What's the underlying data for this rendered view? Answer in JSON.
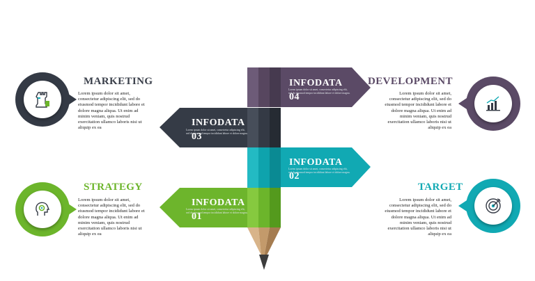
{
  "colors": {
    "purple": "#5b4a66",
    "slate": "#343a45",
    "teal": "#0fa8b2",
    "green": "#6cb52b"
  },
  "arrows": [
    {
      "label": "INFODATA 01",
      "body": "Lorem ipsum dolor sit amet, consectetur adipiscing elit, sed do eiusmod tempor incididunt labore et dolore magna."
    },
    {
      "label": "INFODATA 02",
      "body": "Lorem ipsum dolor sit amet, consectetur adipiscing elit, sed do eiusmod tempor incididunt labore et dolore magna."
    },
    {
      "label": "INFODATA 03",
      "body": "Lorem ipsum dolor sit amet, consectetur adipiscing elit, sed do eiusmod tempor incididunt labore et dolore magna."
    },
    {
      "label": "INFODATA 04",
      "body": "Lorem ipsum dolor sit amet, consectetur adipiscing elit, sed do eiusmod tempor incididunt labore et dolore magna."
    }
  ],
  "panels": {
    "marketing": {
      "title": "MARKETING",
      "icon": "chess-rook-icon",
      "body": "Lorem ipsum dolor sit amet, consectetur adipiscing elit, sed do eiusmod tempor incididunt labore et dolore magna aliqua. Ut enim ad minim veniam, quis nostrud exercitation ullamco laboris nisi ut aliquip ex ea"
    },
    "strategy": {
      "title": "STRATEGY",
      "icon": "head-gear-icon",
      "body": "Lorem ipsum dolor sit amet, consectetur adipiscing elit, sed do eiusmod tempor incididunt labore et dolore magna aliqua. Ut enim ad minim veniam, quis nostrud exercitation ullamco laboris nisi ut aliquip ex ea"
    },
    "development": {
      "title": "DEVELOPMENT",
      "icon": "bar-chart-icon",
      "body": "Lorem ipsum dolor sit amet, consectetur adipiscing elit, sed do eiusmod tempor incididunt labore et dolore magna aliqua. Ut enim ad minim veniam, quis nostrud exercitation ullamco laboris nisi ut aliquip ex ea"
    },
    "target": {
      "title": "TARGET",
      "icon": "target-icon",
      "body": "Lorem ipsum dolor sit amet, consectetur adipiscing elit, sed do eiusmod tempor incididunt labore et dolore magna aliqua. Ut enim ad minim veniam, quis nostrud exercitation ullamco laboris nisi ut aliquip ex ea"
    }
  }
}
